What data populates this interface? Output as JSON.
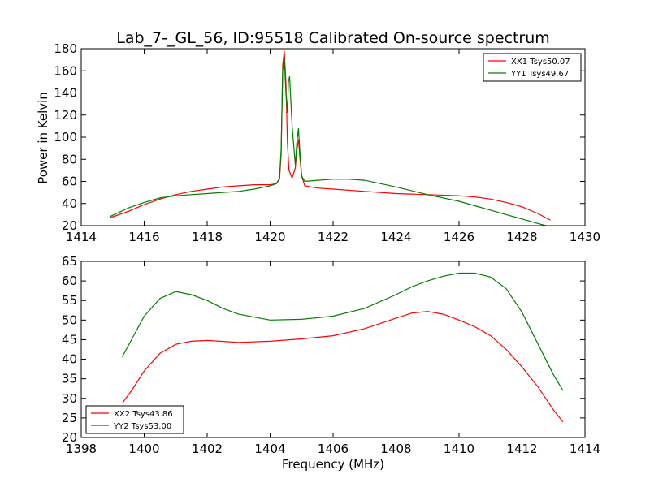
{
  "figure": {
    "title": "Lab_7-_GL_56, ID:95518 Calibrated On-source spectrum",
    "ylabel": "Power in Kelvin",
    "xlabel": "Frequency (MHz)"
  },
  "colors": {
    "red": "#ff0000",
    "green": "#008000"
  },
  "chart_data": [
    {
      "type": "line",
      "title": "Lab_7-_GL_56, ID:95518 Calibrated On-source spectrum",
      "ylabel": "Power in Kelvin",
      "xlabel": "",
      "xlim": [
        1414,
        1430
      ],
      "ylim": [
        20,
        180
      ],
      "xticks": [
        1414,
        1416,
        1418,
        1420,
        1422,
        1424,
        1426,
        1428,
        1430
      ],
      "yticks": [
        20,
        40,
        60,
        80,
        100,
        120,
        140,
        160,
        180
      ],
      "legend_position": "top-right",
      "grid": false,
      "series": [
        {
          "name": "XX1 Tsys50.07",
          "color": "#ff0000",
          "x": [
            1414.9,
            1415.5,
            1416.0,
            1416.5,
            1417.0,
            1417.5,
            1418.0,
            1418.5,
            1419.0,
            1419.5,
            1420.0,
            1420.2,
            1420.3,
            1420.35,
            1420.4,
            1420.45,
            1420.5,
            1420.55,
            1420.6,
            1420.7,
            1420.8,
            1420.85,
            1420.9,
            1420.95,
            1421.0,
            1421.1,
            1421.3,
            1421.5,
            1422.0,
            1423.0,
            1424.0,
            1425.0,
            1426.0,
            1426.5,
            1427.0,
            1427.5,
            1428.0,
            1428.5,
            1428.9
          ],
          "y": [
            27,
            33,
            39,
            44,
            48,
            51,
            53,
            55,
            56,
            57,
            57,
            58,
            62,
            85,
            165,
            178,
            150,
            95,
            70,
            63,
            72,
            88,
            98,
            80,
            65,
            56,
            55,
            54,
            53,
            51,
            49,
            48,
            47,
            46,
            44,
            41,
            37,
            31,
            25
          ]
        },
        {
          "name": "YY1 Tsys49.67",
          "color": "#008000",
          "x": [
            1414.9,
            1415.5,
            1416.0,
            1416.5,
            1417.0,
            1417.5,
            1418.0,
            1418.5,
            1419.0,
            1419.5,
            1420.0,
            1420.2,
            1420.3,
            1420.35,
            1420.4,
            1420.45,
            1420.5,
            1420.55,
            1420.58,
            1420.62,
            1420.7,
            1420.8,
            1420.85,
            1420.9,
            1420.95,
            1421.0,
            1421.1,
            1421.5,
            1422.0,
            1422.5,
            1423.0,
            1423.5,
            1424.0,
            1425.0,
            1426.0,
            1426.5,
            1427.0,
            1427.5,
            1428.0,
            1428.5,
            1428.9
          ],
          "y": [
            28,
            36,
            41,
            45,
            47,
            48,
            49,
            50,
            51,
            53,
            56,
            58,
            63,
            90,
            160,
            172,
            140,
            122,
            150,
            155,
            110,
            75,
            95,
            108,
            85,
            65,
            60,
            61,
            62,
            62,
            61,
            58,
            55,
            48,
            42,
            38,
            34,
            30,
            26,
            22,
            19
          ]
        }
      ]
    },
    {
      "type": "line",
      "title": "",
      "xlabel": "Frequency (MHz)",
      "ylabel": "",
      "xlim": [
        1398,
        1414
      ],
      "ylim": [
        20,
        65
      ],
      "xticks": [
        1398,
        1400,
        1402,
        1404,
        1406,
        1408,
        1410,
        1412,
        1414
      ],
      "yticks": [
        20,
        25,
        30,
        35,
        40,
        45,
        50,
        55,
        60,
        65
      ],
      "legend_position": "bottom-left",
      "grid": false,
      "series": [
        {
          "name": "XX2 Tsys43.86",
          "color": "#ff0000",
          "x": [
            1399.3,
            1399.6,
            1400.0,
            1400.5,
            1401.0,
            1401.5,
            1402.0,
            1403.0,
            1404.0,
            1405.0,
            1406.0,
            1407.0,
            1408.0,
            1408.5,
            1409.0,
            1409.5,
            1410.0,
            1410.5,
            1411.0,
            1411.5,
            1412.0,
            1412.5,
            1413.0,
            1413.3
          ],
          "y": [
            28.7,
            32,
            37,
            41.5,
            43.8,
            44.6,
            44.8,
            44.3,
            44.6,
            45.2,
            46,
            47.8,
            50.5,
            51.8,
            52.2,
            51.5,
            50,
            48.3,
            46,
            42.5,
            38,
            33,
            27,
            24
          ]
        },
        {
          "name": "YY2 Tsys53.00",
          "color": "#008000",
          "x": [
            1399.3,
            1399.6,
            1400.0,
            1400.5,
            1401.0,
            1401.5,
            1402.0,
            1402.5,
            1403.0,
            1404.0,
            1405.0,
            1406.0,
            1407.0,
            1408.0,
            1408.5,
            1409.0,
            1409.5,
            1410.0,
            1410.5,
            1411.0,
            1411.5,
            1412.0,
            1412.5,
            1413.0,
            1413.3
          ],
          "y": [
            40.6,
            45,
            51,
            55.5,
            57.3,
            56.5,
            55,
            53,
            51.5,
            50,
            50.2,
            51,
            53,
            56.5,
            58.5,
            60,
            61.2,
            62,
            62,
            61,
            58,
            52,
            44,
            36,
            32
          ]
        }
      ]
    }
  ]
}
